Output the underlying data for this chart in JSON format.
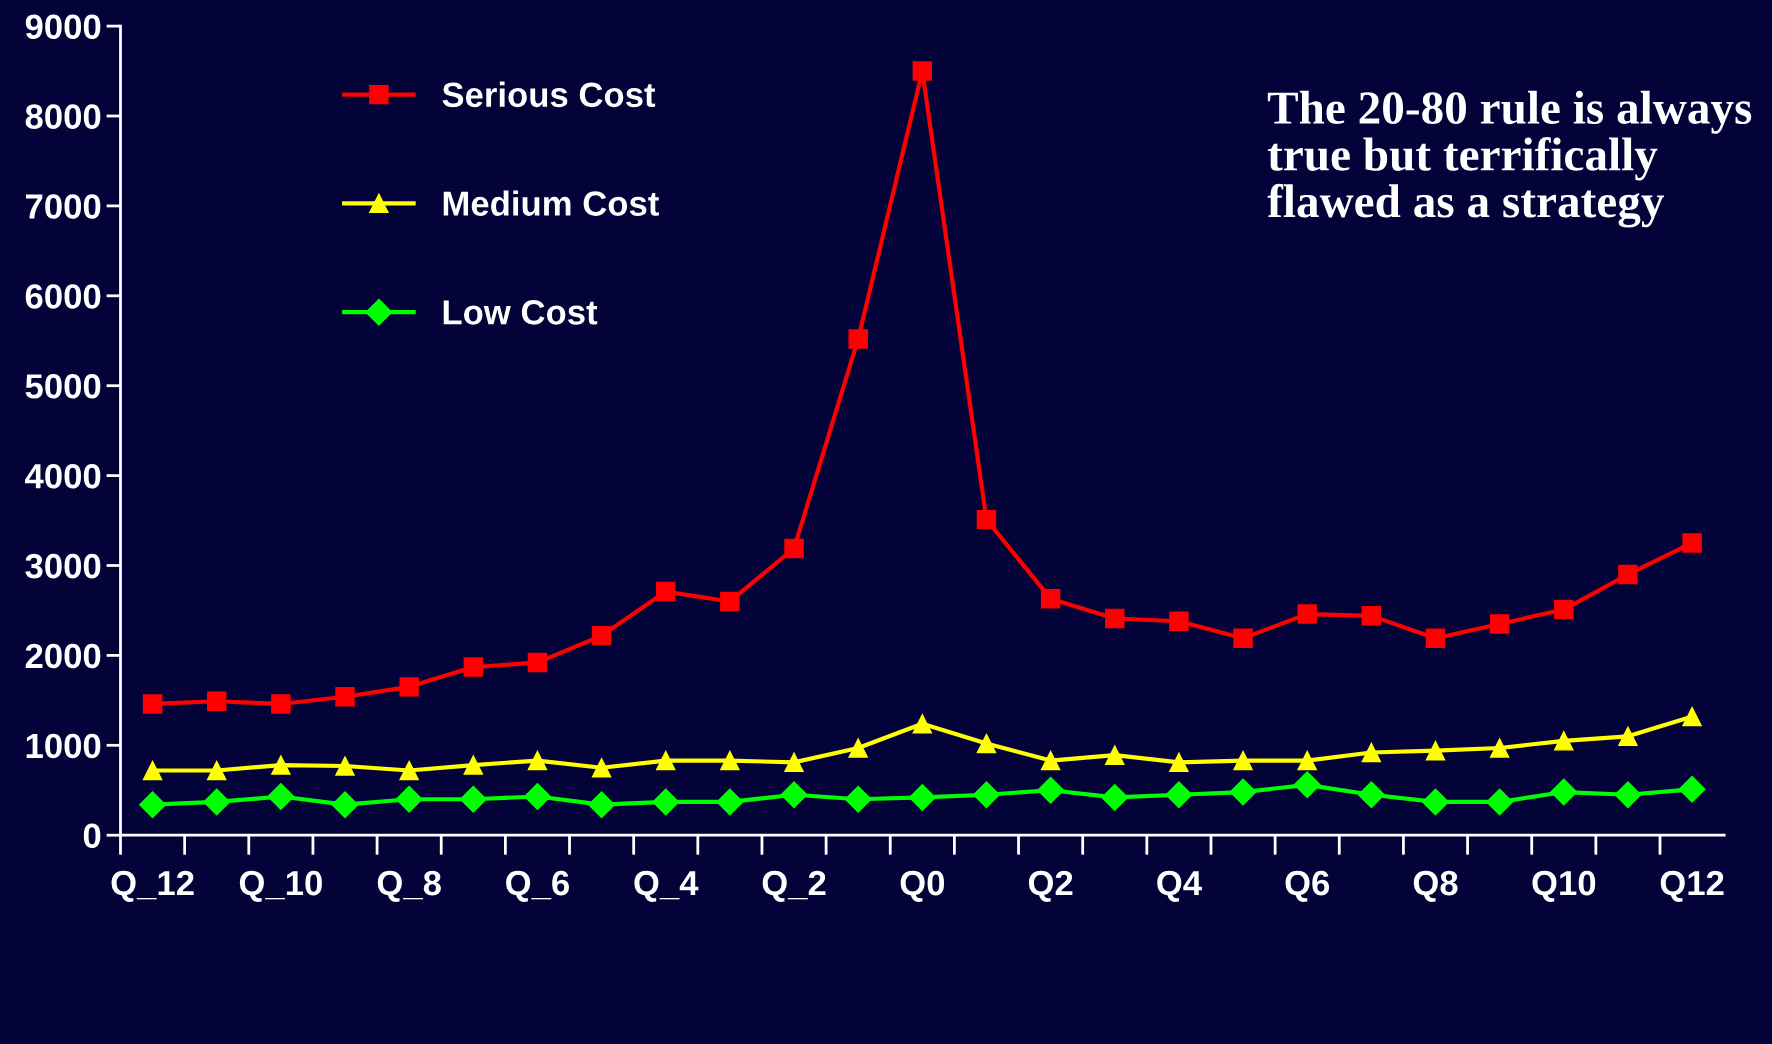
{
  "chart_data": {
    "type": "line",
    "categories": [
      "Q_12",
      null,
      "Q_10",
      null,
      "Q_8",
      null,
      "Q_6",
      null,
      "Q_4",
      null,
      "Q_2",
      null,
      "Q0",
      null,
      "Q2",
      null,
      "Q4",
      null,
      "Q6",
      null,
      "Q8",
      null,
      "Q10",
      null,
      "Q12"
    ],
    "series": [
      {
        "name": "Serious Cost",
        "color": "#ff0000",
        "marker": "square",
        "values": [
          1460,
          1490,
          1460,
          1540,
          1650,
          1870,
          1920,
          2220,
          2710,
          2600,
          3190,
          5520,
          8500,
          3510,
          2630,
          2410,
          2380,
          2190,
          2460,
          2440,
          2190,
          2350,
          2510,
          2900,
          3250
        ]
      },
      {
        "name": "Medium Cost",
        "color": "#ffff00",
        "marker": "triangle",
        "values": [
          720,
          720,
          780,
          770,
          720,
          780,
          830,
          750,
          830,
          830,
          810,
          970,
          1240,
          1020,
          830,
          890,
          810,
          830,
          830,
          920,
          940,
          970,
          1050,
          1100,
          1320
        ]
      },
      {
        "name": "Low Cost",
        "color": "#00ff00",
        "marker": "diamond",
        "values": [
          340,
          370,
          430,
          340,
          400,
          400,
          430,
          340,
          370,
          370,
          450,
          400,
          420,
          450,
          500,
          420,
          450,
          480,
          560,
          450,
          370,
          370,
          480,
          450,
          510
        ]
      }
    ],
    "ylim": [
      0,
      9000
    ],
    "yticks": [
      0,
      1000,
      2000,
      3000,
      4000,
      5000,
      6000,
      7000,
      8000,
      9000
    ],
    "grid": false,
    "legend": "top left",
    "annotations": [
      "The 20-80 rule is always true but terrifically flawed as a strategy"
    ]
  }
}
